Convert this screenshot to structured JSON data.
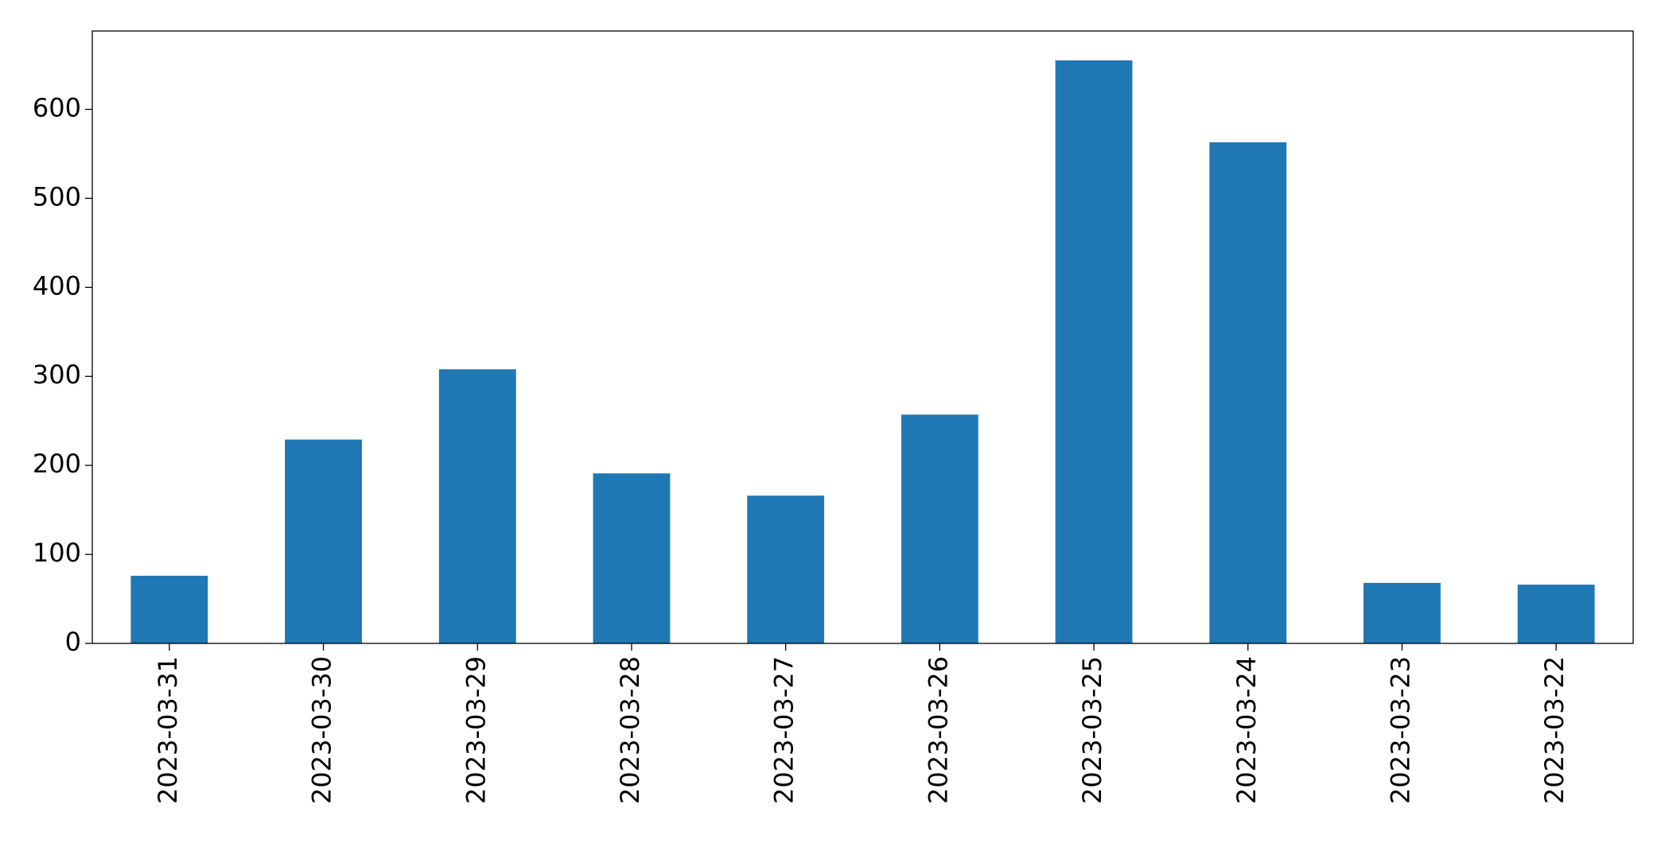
{
  "chart_data": {
    "type": "bar",
    "categories": [
      "2023-03-31",
      "2023-03-30",
      "2023-03-29",
      "2023-03-28",
      "2023-03-27",
      "2023-03-26",
      "2023-03-25",
      "2023-03-24",
      "2023-03-23",
      "2023-03-22"
    ],
    "values": [
      76,
      229,
      308,
      191,
      166,
      257,
      655,
      563,
      68,
      66
    ],
    "color": "#1f77b4",
    "ylim": [
      0,
      688
    ],
    "yticks": [
      0,
      100,
      200,
      300,
      400,
      500,
      600
    ],
    "grid": false
  }
}
